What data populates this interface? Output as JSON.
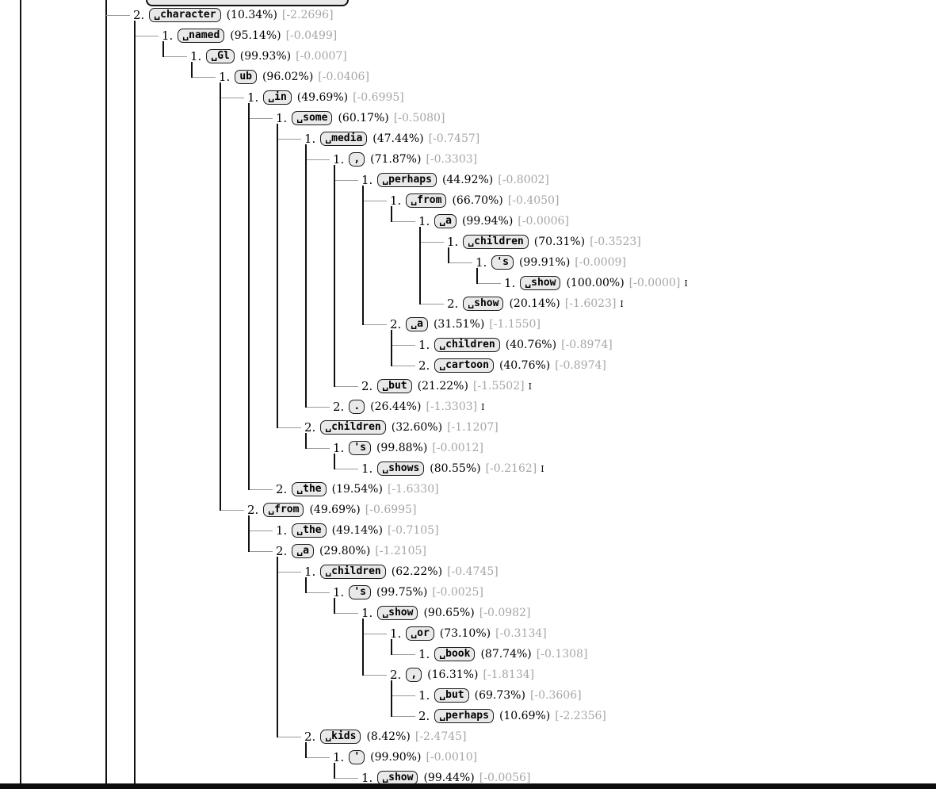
{
  "tree": {
    "eos_marker": "I",
    "colors": {
      "box_background": "#e9e9e9",
      "box_border": "#1a1a1a",
      "logprob_text": "#a6a6a6",
      "horizontal_connector": "#999999",
      "vertical_connector": "#111111",
      "bottom_bar": "#0d0d0d"
    },
    "nodes": [
      {
        "rank": "2.",
        "token": "␣character",
        "prob": "(10.34%)",
        "logprob": "[-2.2696]",
        "eos": false,
        "level": 0
      },
      {
        "rank": "1.",
        "token": "␣named",
        "prob": "(95.14%)",
        "logprob": "[-0.0499]",
        "eos": false,
        "level": 1
      },
      {
        "rank": "1.",
        "token": "␣Gl",
        "prob": "(99.93%)",
        "logprob": "[-0.0007]",
        "eos": false,
        "level": 2
      },
      {
        "rank": "1.",
        "token": "ub",
        "prob": "(96.02%)",
        "logprob": "[-0.0406]",
        "eos": false,
        "level": 3
      },
      {
        "rank": "1.",
        "token": "␣in",
        "prob": "(49.69%)",
        "logprob": "[-0.6995]",
        "eos": false,
        "level": 4
      },
      {
        "rank": "1.",
        "token": "␣some",
        "prob": "(60.17%)",
        "logprob": "[-0.5080]",
        "eos": false,
        "level": 5
      },
      {
        "rank": "1.",
        "token": "␣media",
        "prob": "(47.44%)",
        "logprob": "[-0.7457]",
        "eos": false,
        "level": 6
      },
      {
        "rank": "1.",
        "token": ",",
        "prob": "(71.87%)",
        "logprob": "[-0.3303]",
        "eos": false,
        "level": 7
      },
      {
        "rank": "1.",
        "token": "␣perhaps",
        "prob": "(44.92%)",
        "logprob": "[-0.8002]",
        "eos": false,
        "level": 8
      },
      {
        "rank": "1.",
        "token": "␣from",
        "prob": "(66.70%)",
        "logprob": "[-0.4050]",
        "eos": false,
        "level": 9
      },
      {
        "rank": "1.",
        "token": "␣a",
        "prob": "(99.94%)",
        "logprob": "[-0.0006]",
        "eos": false,
        "level": 10
      },
      {
        "rank": "1.",
        "token": "␣children",
        "prob": "(70.31%)",
        "logprob": "[-0.3523]",
        "eos": false,
        "level": 11
      },
      {
        "rank": "1.",
        "token": "'s",
        "prob": "(99.91%)",
        "logprob": "[-0.0009]",
        "eos": false,
        "level": 12
      },
      {
        "rank": "1.",
        "token": "␣show",
        "prob": "(100.00%)",
        "logprob": "[-0.0000]",
        "eos": true,
        "level": 13
      },
      {
        "rank": "2.",
        "token": "␣show",
        "prob": "(20.14%)",
        "logprob": "[-1.6023]",
        "eos": true,
        "level": 11
      },
      {
        "rank": "2.",
        "token": "␣a",
        "prob": "(31.51%)",
        "logprob": "[-1.1550]",
        "eos": false,
        "level": 9
      },
      {
        "rank": "1.",
        "token": "␣children",
        "prob": "(40.76%)",
        "logprob": "[-0.8974]",
        "eos": false,
        "level": 10
      },
      {
        "rank": "2.",
        "token": "␣cartoon",
        "prob": "(40.76%)",
        "logprob": "[-0.8974]",
        "eos": false,
        "level": 10
      },
      {
        "rank": "2.",
        "token": "␣but",
        "prob": "(21.22%)",
        "logprob": "[-1.5502]",
        "eos": true,
        "level": 8
      },
      {
        "rank": "2.",
        "token": ".",
        "prob": "(26.44%)",
        "logprob": "[-1.3303]",
        "eos": true,
        "level": 7
      },
      {
        "rank": "2.",
        "token": "␣children",
        "prob": "(32.60%)",
        "logprob": "[-1.1207]",
        "eos": false,
        "level": 6
      },
      {
        "rank": "1.",
        "token": "'s",
        "prob": "(99.88%)",
        "logprob": "[-0.0012]",
        "eos": false,
        "level": 7
      },
      {
        "rank": "1.",
        "token": "␣shows",
        "prob": "(80.55%)",
        "logprob": "[-0.2162]",
        "eos": true,
        "level": 8
      },
      {
        "rank": "2.",
        "token": "␣the",
        "prob": "(19.54%)",
        "logprob": "[-1.6330]",
        "eos": false,
        "level": 5
      },
      {
        "rank": "2.",
        "token": "␣from",
        "prob": "(49.69%)",
        "logprob": "[-0.6995]",
        "eos": false,
        "level": 4
      },
      {
        "rank": "1.",
        "token": "␣the",
        "prob": "(49.14%)",
        "logprob": "[-0.7105]",
        "eos": false,
        "level": 5
      },
      {
        "rank": "2.",
        "token": "␣a",
        "prob": "(29.80%)",
        "logprob": "[-1.2105]",
        "eos": false,
        "level": 5
      },
      {
        "rank": "1.",
        "token": "␣children",
        "prob": "(62.22%)",
        "logprob": "[-0.4745]",
        "eos": false,
        "level": 6
      },
      {
        "rank": "1.",
        "token": "'s",
        "prob": "(99.75%)",
        "logprob": "[-0.0025]",
        "eos": false,
        "level": 7
      },
      {
        "rank": "1.",
        "token": "␣show",
        "prob": "(90.65%)",
        "logprob": "[-0.0982]",
        "eos": false,
        "level": 8
      },
      {
        "rank": "1.",
        "token": "␣or",
        "prob": "(73.10%)",
        "logprob": "[-0.3134]",
        "eos": false,
        "level": 9
      },
      {
        "rank": "1.",
        "token": "␣book",
        "prob": "(87.74%)",
        "logprob": "[-0.1308]",
        "eos": false,
        "level": 10
      },
      {
        "rank": "2.",
        "token": ",",
        "prob": "(16.31%)",
        "logprob": "[-1.8134]",
        "eos": false,
        "level": 9
      },
      {
        "rank": "1.",
        "token": "␣but",
        "prob": "(69.73%)",
        "logprob": "[-0.3606]",
        "eos": false,
        "level": 10
      },
      {
        "rank": "2.",
        "token": "␣perhaps",
        "prob": "(10.69%)",
        "logprob": "[-2.2356]",
        "eos": false,
        "level": 10
      },
      {
        "rank": "2.",
        "token": "␣kids",
        "prob": "(8.42%)",
        "logprob": "[-2.4745]",
        "eos": false,
        "level": 6
      },
      {
        "rank": "1.",
        "token": "'",
        "prob": "(99.90%)",
        "logprob": "[-0.0010]",
        "eos": false,
        "level": 7
      },
      {
        "rank": "1.",
        "token": "␣show",
        "prob": "(99.44%)",
        "logprob": "[-0.0056]",
        "eos": false,
        "level": 8
      }
    ]
  }
}
